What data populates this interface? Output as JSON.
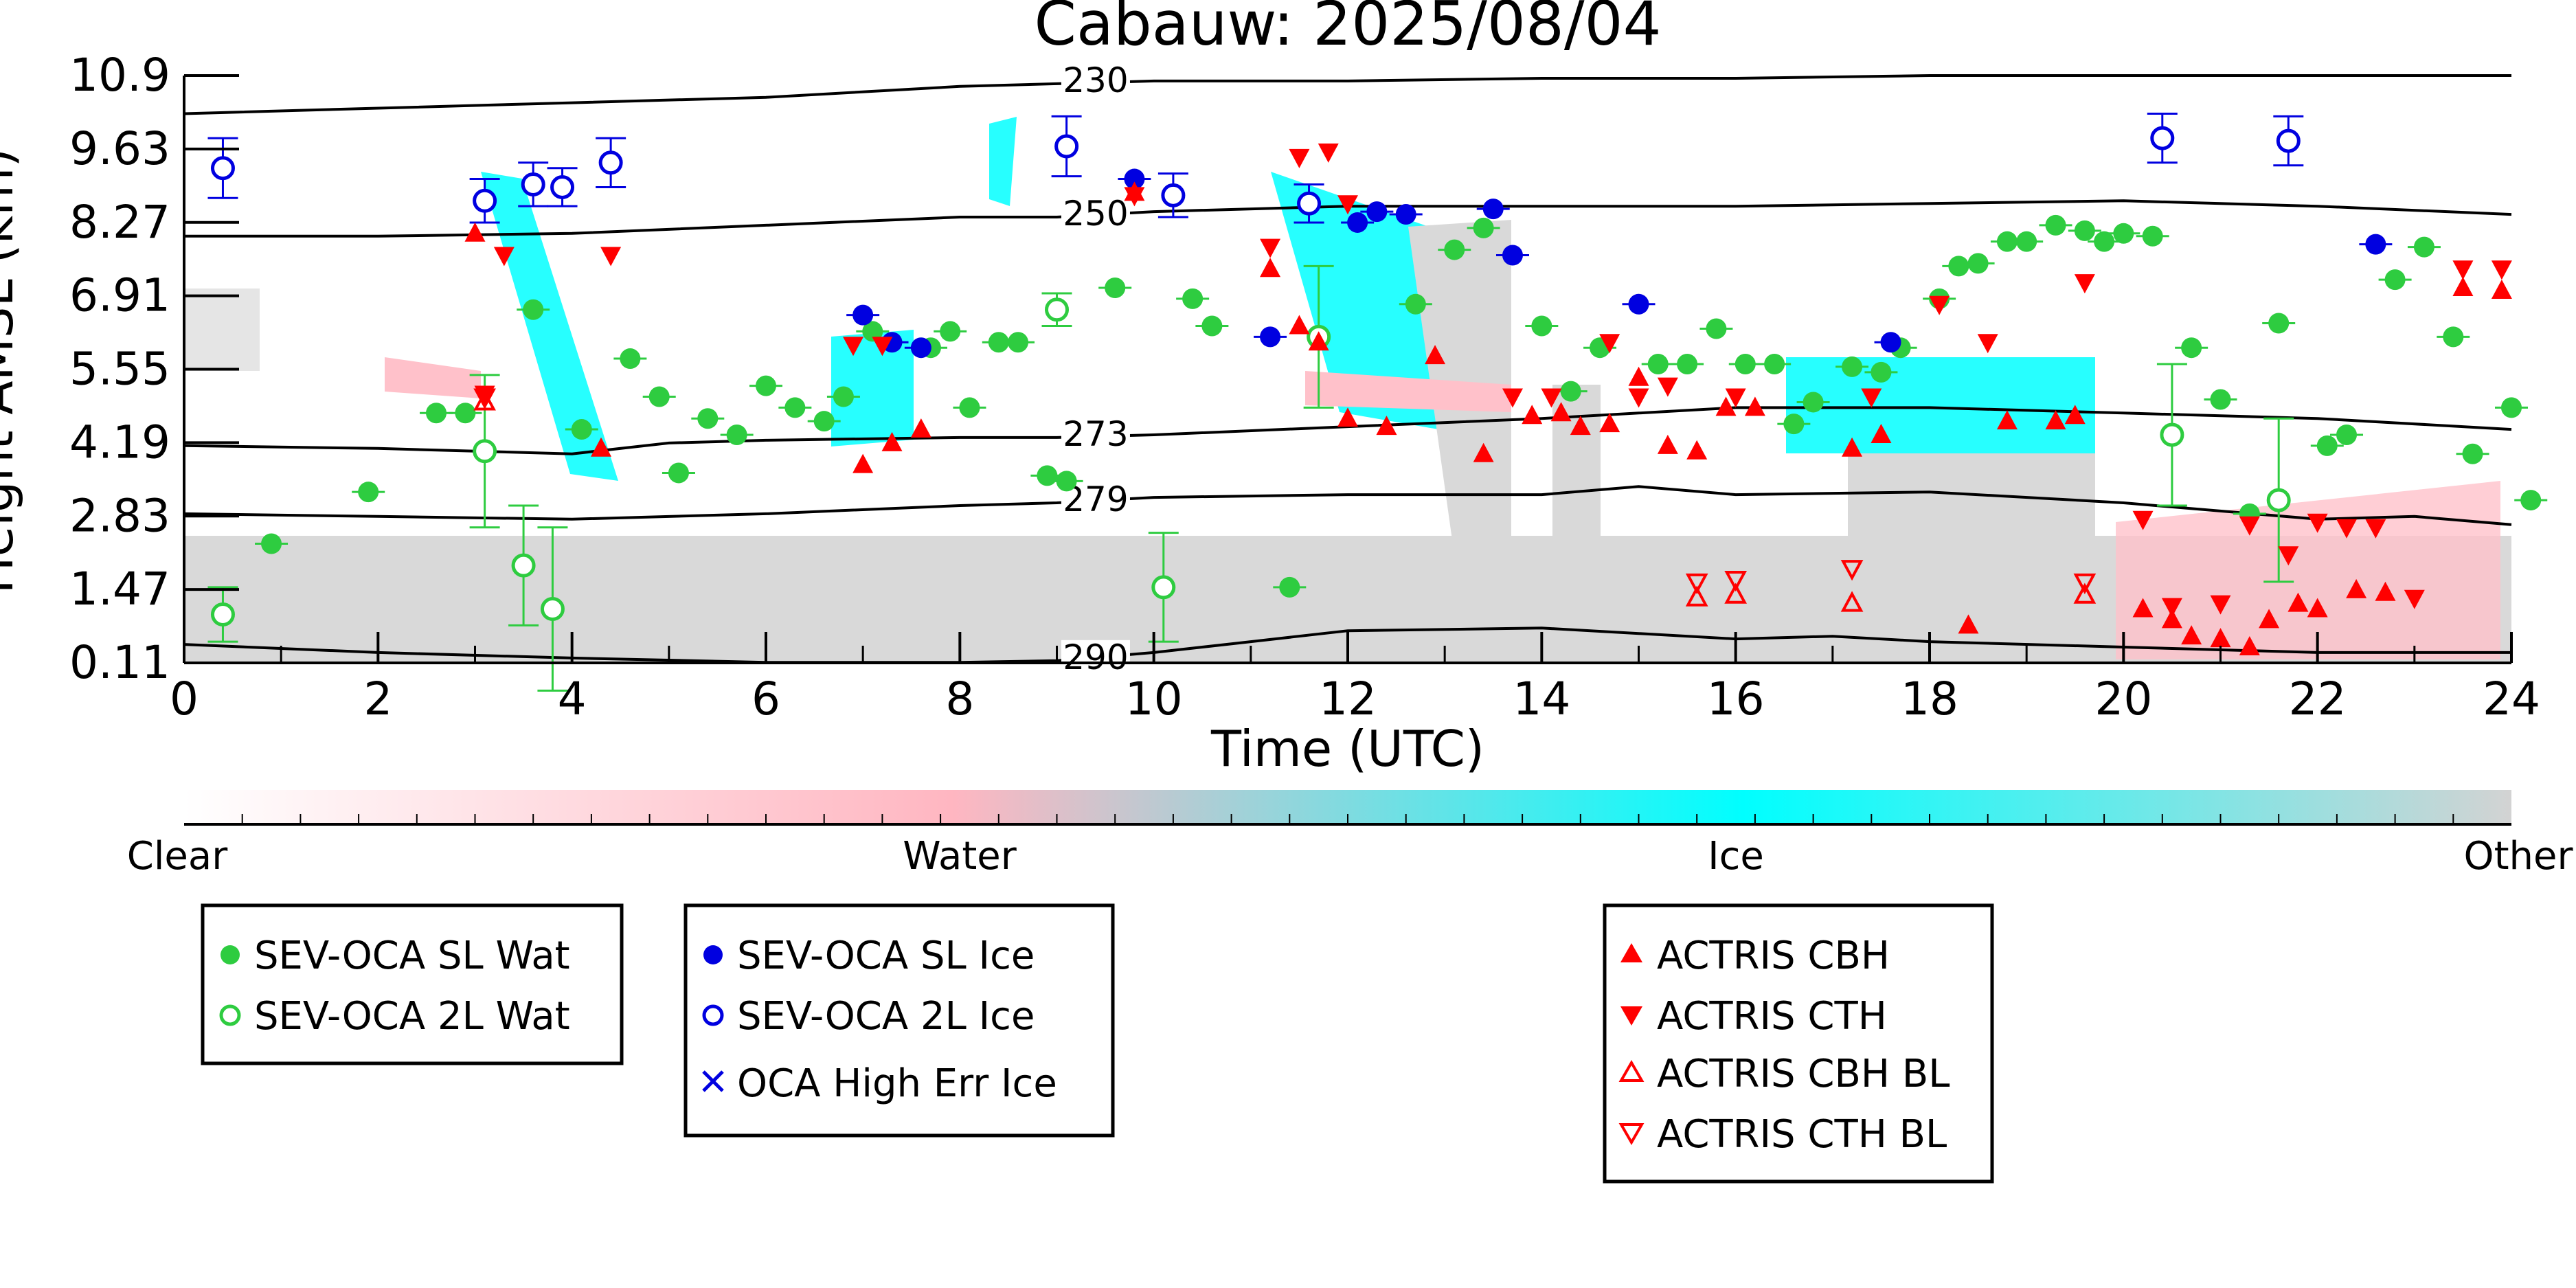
{
  "chart_data": {
    "type": "scatter",
    "title": "Cabauw: 2025/08/04",
    "xlabel": "Time (UTC)",
    "ylabel": "Height AMSL (km)",
    "xlim": [
      0,
      24
    ],
    "ylim": [
      0.11,
      10.9
    ],
    "x_ticks": [
      "0",
      "2",
      "4",
      "6",
      "8",
      "10",
      "12",
      "14",
      "16",
      "18",
      "20",
      "22",
      "24"
    ],
    "y_ticks": [
      "0.11",
      "1.47",
      "2.83",
      "4.19",
      "5.55",
      "6.91",
      "8.27",
      "9.63",
      "10.9"
    ],
    "grid": false,
    "colorbar": {
      "labels": [
        "Clear",
        "Water",
        "Ice",
        "Other"
      ],
      "colors": [
        "#ffffff",
        "#ffb6c1",
        "#00ffff",
        "#d3d3d3"
      ]
    },
    "isotherms": [
      {
        "label": "230",
        "points": [
          [
            0,
            10.2
          ],
          [
            2,
            10.3
          ],
          [
            4,
            10.4
          ],
          [
            6,
            10.5
          ],
          [
            8,
            10.7
          ],
          [
            9,
            10.75
          ],
          [
            10,
            10.8
          ],
          [
            12,
            10.8
          ],
          [
            14,
            10.85
          ],
          [
            16,
            10.85
          ],
          [
            18,
            10.9
          ],
          [
            24,
            10.9
          ]
        ]
      },
      {
        "label": "250",
        "points": [
          [
            0,
            7.95
          ],
          [
            2,
            7.95
          ],
          [
            4,
            8.0
          ],
          [
            6,
            8.15
          ],
          [
            8,
            8.3
          ],
          [
            9,
            8.3
          ],
          [
            10,
            8.4
          ],
          [
            12,
            8.5
          ],
          [
            14,
            8.5
          ],
          [
            16,
            8.5
          ],
          [
            18,
            8.55
          ],
          [
            20,
            8.6
          ],
          [
            22,
            8.5
          ],
          [
            24,
            8.35
          ]
        ]
      },
      {
        "label": "273",
        "points": [
          [
            0,
            4.1
          ],
          [
            2,
            4.05
          ],
          [
            3,
            4.0
          ],
          [
            4,
            3.95
          ],
          [
            5,
            4.15
          ],
          [
            6,
            4.2
          ],
          [
            8,
            4.25
          ],
          [
            9,
            4.25
          ],
          [
            10,
            4.3
          ],
          [
            12,
            4.45
          ],
          [
            14,
            4.6
          ],
          [
            16,
            4.8
          ],
          [
            18,
            4.8
          ],
          [
            20,
            4.7
          ],
          [
            22,
            4.6
          ],
          [
            24,
            4.4
          ]
        ]
      },
      {
        "label": "279",
        "points": [
          [
            0,
            2.85
          ],
          [
            2,
            2.8
          ],
          [
            4,
            2.75
          ],
          [
            6,
            2.85
          ],
          [
            8,
            3.0
          ],
          [
            9,
            3.05
          ],
          [
            10,
            3.15
          ],
          [
            12,
            3.2
          ],
          [
            14,
            3.2
          ],
          [
            15,
            3.35
          ],
          [
            16,
            3.2
          ],
          [
            18,
            3.25
          ],
          [
            20,
            3.05
          ],
          [
            22,
            2.75
          ],
          [
            23,
            2.8
          ],
          [
            24,
            2.65
          ]
        ]
      },
      {
        "label": "290",
        "points": [
          [
            0,
            0.45
          ],
          [
            2,
            0.3
          ],
          [
            4,
            0.2
          ],
          [
            6,
            0.12
          ],
          [
            8,
            0.12
          ],
          [
            9,
            0.15
          ],
          [
            10,
            0.3
          ],
          [
            11,
            0.5
          ],
          [
            12,
            0.7
          ],
          [
            14,
            0.75
          ],
          [
            16,
            0.55
          ],
          [
            17,
            0.6
          ],
          [
            18,
            0.5
          ],
          [
            20,
            0.4
          ],
          [
            22,
            0.3
          ],
          [
            24,
            0.3
          ]
        ]
      }
    ],
    "series": [
      {
        "name": "SEV-OCA SL Wat",
        "color": "#2ecc40",
        "marker": "circle-filled",
        "points": [
          [
            0.9,
            2.3
          ],
          [
            1.9,
            3.25
          ],
          [
            2.6,
            4.7
          ],
          [
            2.9,
            4.7
          ],
          [
            3.6,
            6.6
          ],
          [
            4.1,
            4.4
          ],
          [
            4.6,
            5.7
          ],
          [
            4.9,
            5.0
          ],
          [
            5.1,
            3.6
          ],
          [
            5.4,
            4.6
          ],
          [
            5.7,
            4.3
          ],
          [
            6.0,
            5.2
          ],
          [
            6.3,
            4.8
          ],
          [
            6.6,
            4.55
          ],
          [
            6.8,
            5.0
          ],
          [
            7.1,
            6.2
          ],
          [
            7.7,
            5.9
          ],
          [
            7.9,
            6.2
          ],
          [
            8.1,
            4.8
          ],
          [
            8.4,
            6.0
          ],
          [
            8.6,
            6.0
          ],
          [
            8.9,
            3.55
          ],
          [
            9.1,
            3.45
          ],
          [
            9.6,
            7.0
          ],
          [
            10.4,
            6.8
          ],
          [
            10.6,
            6.3
          ],
          [
            11.4,
            1.5
          ],
          [
            12.7,
            6.7
          ],
          [
            13.1,
            7.7
          ],
          [
            13.4,
            8.1
          ],
          [
            14.0,
            6.3
          ],
          [
            14.3,
            5.1
          ],
          [
            14.6,
            5.9
          ],
          [
            15.2,
            5.6
          ],
          [
            15.5,
            5.6
          ],
          [
            15.8,
            6.25
          ],
          [
            16.1,
            5.6
          ],
          [
            16.4,
            5.6
          ],
          [
            16.6,
            4.5
          ],
          [
            16.8,
            4.9
          ],
          [
            17.2,
            5.55
          ],
          [
            17.5,
            5.45
          ],
          [
            17.7,
            5.9
          ],
          [
            18.1,
            6.8
          ],
          [
            18.3,
            7.4
          ],
          [
            18.5,
            7.45
          ],
          [
            18.8,
            7.85
          ],
          [
            19.0,
            7.85
          ],
          [
            19.3,
            8.15
          ],
          [
            19.6,
            8.05
          ],
          [
            19.8,
            7.85
          ],
          [
            20.0,
            8.0
          ],
          [
            20.3,
            7.95
          ],
          [
            20.7,
            5.9
          ],
          [
            21.0,
            4.95
          ],
          [
            21.3,
            2.85
          ],
          [
            21.6,
            6.35
          ],
          [
            22.1,
            4.1
          ],
          [
            22.3,
            4.3
          ],
          [
            22.8,
            7.15
          ],
          [
            23.1,
            7.75
          ],
          [
            23.4,
            6.1
          ],
          [
            23.6,
            3.95
          ],
          [
            24.0,
            4.8
          ],
          [
            24.2,
            3.1
          ]
        ]
      },
      {
        "name": "SEV-OCA 2L Wat",
        "color": "#2ecc40",
        "marker": "circle-open",
        "points": [
          [
            0.4,
            1.0
          ],
          [
            3.1,
            4.0
          ],
          [
            3.5,
            1.9
          ],
          [
            3.8,
            1.1
          ],
          [
            9.0,
            6.6
          ],
          [
            10.1,
            1.5
          ],
          [
            11.7,
            6.1
          ],
          [
            20.5,
            4.3
          ],
          [
            21.6,
            3.1
          ]
        ],
        "errors": [
          0.5,
          1.4,
          1.1,
          1.5,
          0.3,
          1.0,
          1.3,
          1.3,
          1.5
        ]
      },
      {
        "name": "SEV-OCA SL Ice",
        "color": "#0000e0",
        "marker": "circle-filled",
        "points": [
          [
            7.0,
            6.5
          ],
          [
            7.3,
            6.0
          ],
          [
            7.6,
            5.9
          ],
          [
            9.8,
            9.0
          ],
          [
            11.2,
            6.1
          ],
          [
            12.1,
            8.2
          ],
          [
            12.3,
            8.4
          ],
          [
            12.6,
            8.35
          ],
          [
            13.5,
            8.45
          ],
          [
            13.7,
            7.6
          ],
          [
            15.0,
            6.7
          ],
          [
            17.6,
            6.0
          ],
          [
            22.6,
            7.8
          ]
        ]
      },
      {
        "name": "SEV-OCA 2L Ice",
        "color": "#0000e0",
        "marker": "circle-open",
        "points": [
          [
            0.4,
            9.2
          ],
          [
            3.1,
            8.6
          ],
          [
            3.6,
            8.9
          ],
          [
            3.9,
            8.85
          ],
          [
            4.4,
            9.3
          ],
          [
            9.1,
            9.6
          ],
          [
            10.2,
            8.7
          ],
          [
            11.6,
            8.55
          ],
          [
            20.4,
            9.75
          ],
          [
            21.7,
            9.7
          ]
        ],
        "errors": [
          0.55,
          0.4,
          0.4,
          0.35,
          0.45,
          0.55,
          0.4,
          0.35,
          0.45,
          0.45
        ]
      },
      {
        "name": "OCA High Err Ice",
        "color": "#0000e0",
        "marker": "x",
        "points": []
      },
      {
        "name": "ACTRIS CBH",
        "color": "#ff0000",
        "marker": "triangle-up-filled",
        "points": [
          [
            3.0,
            8.0
          ],
          [
            4.3,
            4.05
          ],
          [
            7.0,
            3.75
          ],
          [
            7.3,
            4.15
          ],
          [
            7.6,
            4.4
          ],
          [
            9.8,
            8.75
          ],
          [
            11.2,
            7.35
          ],
          [
            11.5,
            6.3
          ],
          [
            11.7,
            6.0
          ],
          [
            12.0,
            4.6
          ],
          [
            12.4,
            4.45
          ],
          [
            12.9,
            5.75
          ],
          [
            13.4,
            3.95
          ],
          [
            13.9,
            4.65
          ],
          [
            14.2,
            4.7
          ],
          [
            14.4,
            4.45
          ],
          [
            14.7,
            4.5
          ],
          [
            15.0,
            5.35
          ],
          [
            15.3,
            4.1
          ],
          [
            15.6,
            4.0
          ],
          [
            15.9,
            4.8
          ],
          [
            16.2,
            4.8
          ],
          [
            17.2,
            4.05
          ],
          [
            17.5,
            4.3
          ],
          [
            18.4,
            0.8
          ],
          [
            18.8,
            4.55
          ],
          [
            19.3,
            4.55
          ],
          [
            19.5,
            4.65
          ],
          [
            20.2,
            1.1
          ],
          [
            20.5,
            0.9
          ],
          [
            20.7,
            0.6
          ],
          [
            21.0,
            0.55
          ],
          [
            21.3,
            0.4
          ],
          [
            21.5,
            0.9
          ],
          [
            21.8,
            1.2
          ],
          [
            22.0,
            1.1
          ],
          [
            22.4,
            1.45
          ],
          [
            22.7,
            1.4
          ],
          [
            23.5,
            7.0
          ],
          [
            23.9,
            6.95
          ]
        ]
      },
      {
        "name": "ACTRIS CTH",
        "color": "#ff0000",
        "marker": "triangle-down-filled",
        "points": [
          [
            3.1,
            5.05
          ],
          [
            3.3,
            7.6
          ],
          [
            4.4,
            7.6
          ],
          [
            6.9,
            5.95
          ],
          [
            7.2,
            5.95
          ],
          [
            9.8,
            8.7
          ],
          [
            11.2,
            7.75
          ],
          [
            11.5,
            9.4
          ],
          [
            11.8,
            9.5
          ],
          [
            12.0,
            8.55
          ],
          [
            13.7,
            5.0
          ],
          [
            14.1,
            5.0
          ],
          [
            14.7,
            6.0
          ],
          [
            15.0,
            5.0
          ],
          [
            15.3,
            5.2
          ],
          [
            16.0,
            5.0
          ],
          [
            17.4,
            5.0
          ],
          [
            18.1,
            6.7
          ],
          [
            18.6,
            6.0
          ],
          [
            19.6,
            7.1
          ],
          [
            20.2,
            2.75
          ],
          [
            20.5,
            1.15
          ],
          [
            21.0,
            1.2
          ],
          [
            21.3,
            2.65
          ],
          [
            21.7,
            2.1
          ],
          [
            22.0,
            2.7
          ],
          [
            22.3,
            2.6
          ],
          [
            22.6,
            2.6
          ],
          [
            23.0,
            1.3
          ],
          [
            23.5,
            7.35
          ],
          [
            23.9,
            7.35
          ]
        ]
      },
      {
        "name": "ACTRIS CBH BL",
        "color": "#ff0000",
        "marker": "triangle-up-open",
        "points": [
          [
            3.1,
            4.9
          ],
          [
            15.6,
            1.3
          ],
          [
            16.0,
            1.35
          ],
          [
            17.2,
            1.2
          ],
          [
            19.6,
            1.35
          ]
        ]
      },
      {
        "name": "ACTRIS CTH BL",
        "color": "#ff0000",
        "marker": "triangle-down-open",
        "points": [
          [
            3.1,
            5.0
          ],
          [
            15.6,
            1.6
          ],
          [
            16.0,
            1.65
          ],
          [
            17.2,
            1.85
          ],
          [
            19.6,
            1.6
          ]
        ]
      }
    ]
  }
}
